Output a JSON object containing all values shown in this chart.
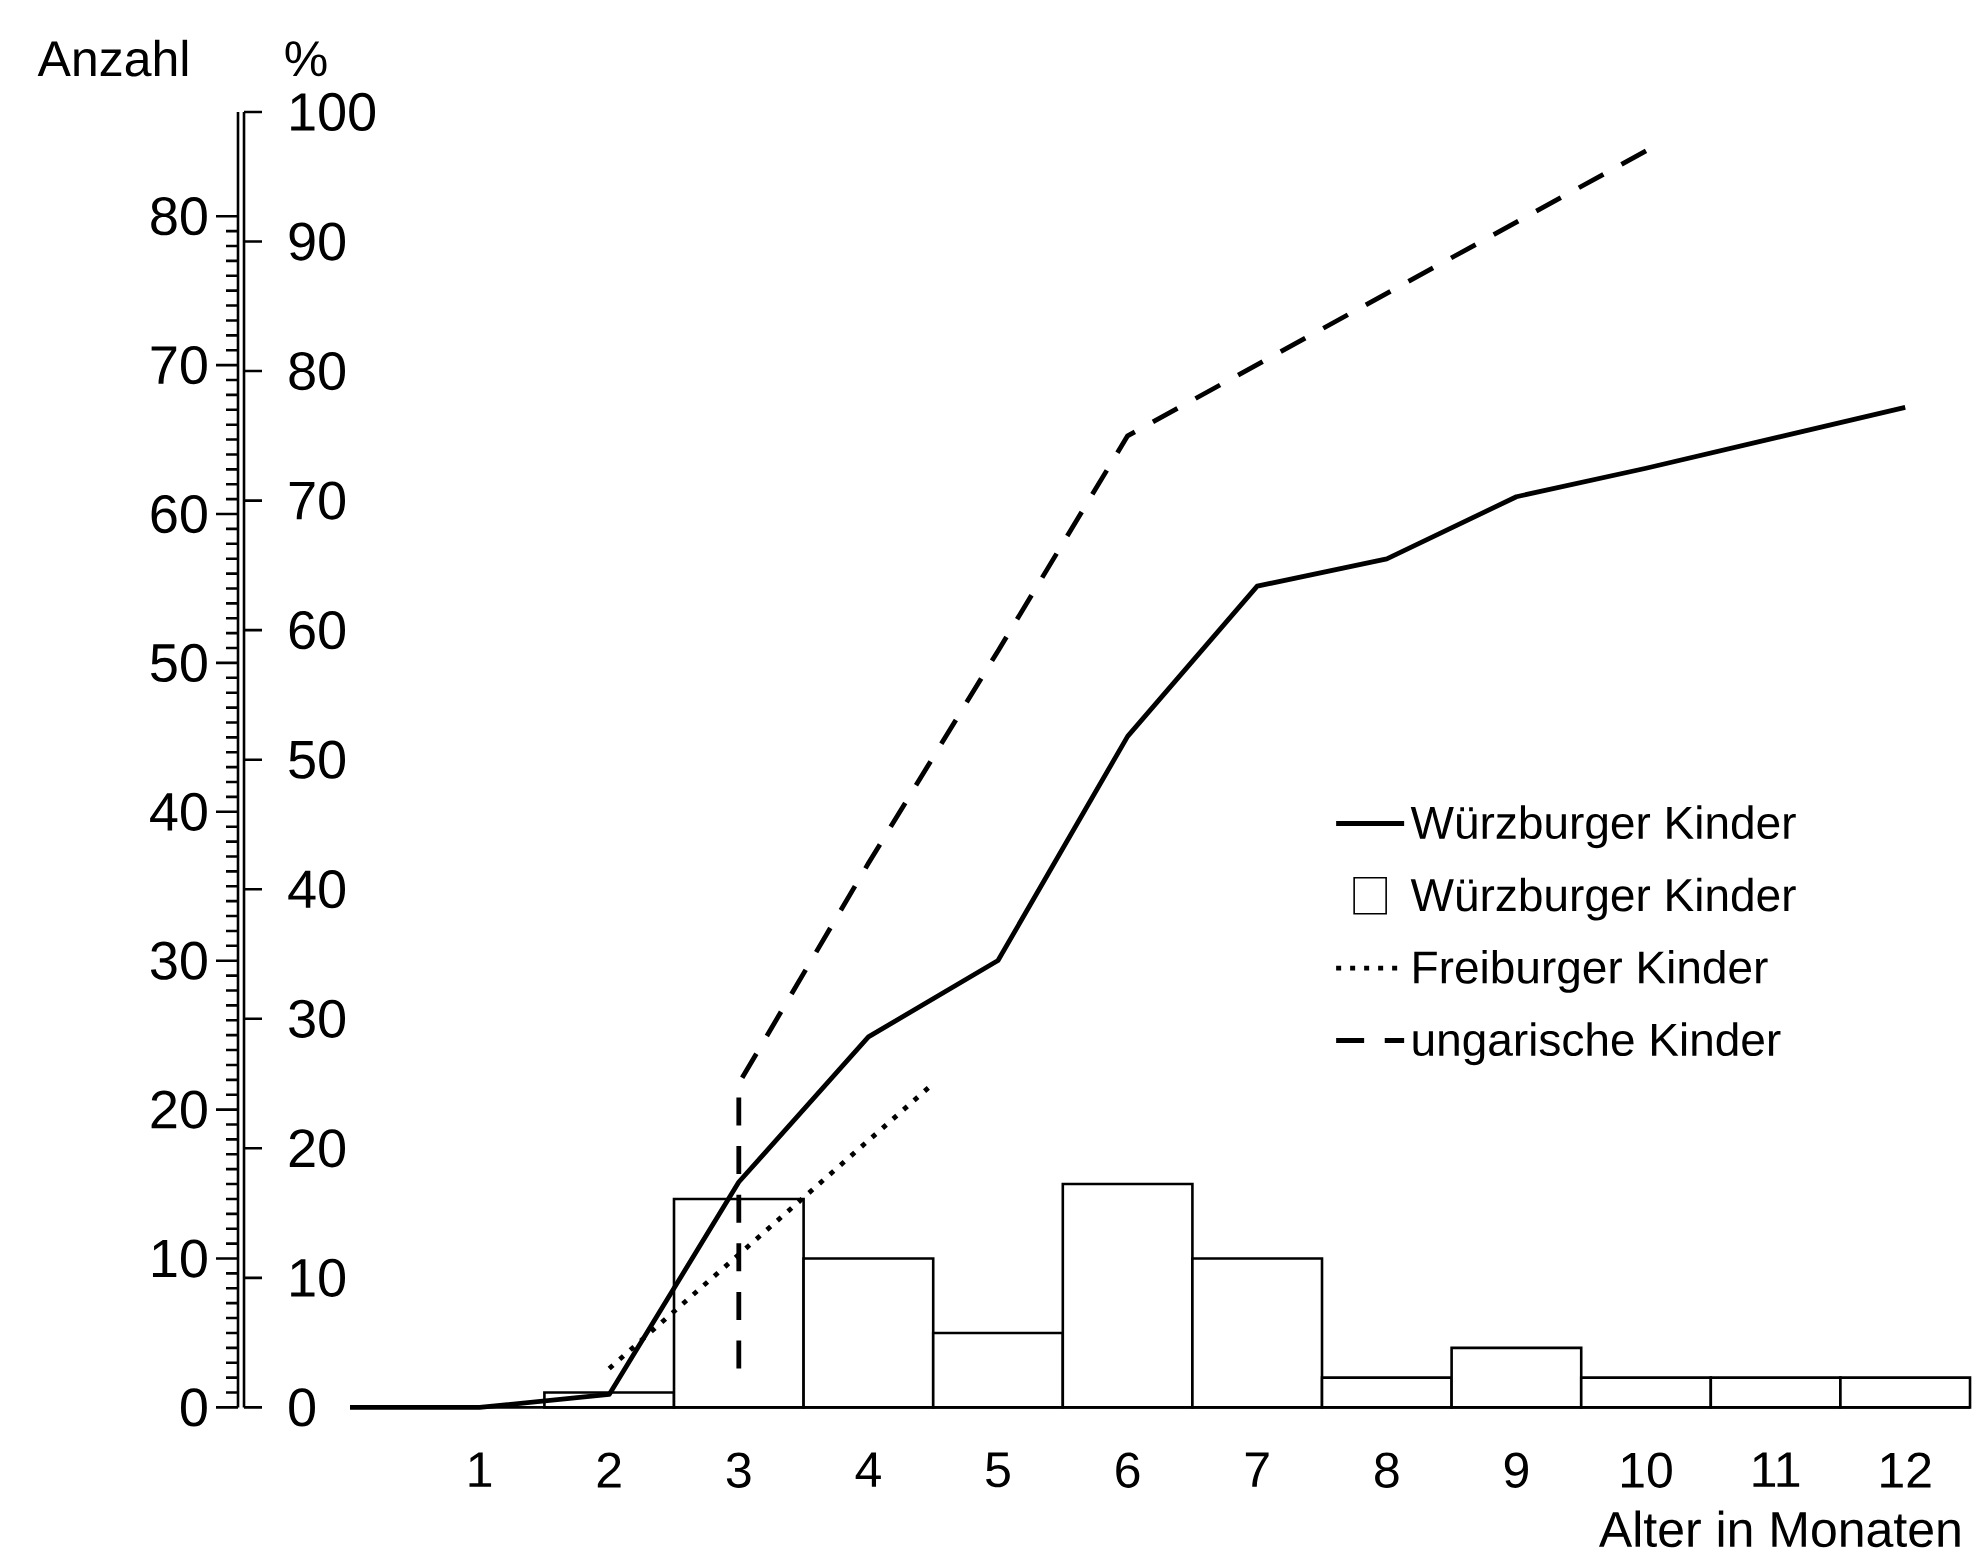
{
  "chart_data": {
    "type": "line",
    "xlabel": "Alter in Monaten",
    "ylabel": "Anzahl",
    "y2label": "%",
    "xlim": [
      0,
      12.5
    ],
    "xticks": [
      1,
      2,
      3,
      4,
      5,
      6,
      7,
      8,
      9,
      10,
      11,
      12
    ],
    "ylim": [
      0,
      87
    ],
    "yticks": [
      0,
      10,
      20,
      30,
      40,
      50,
      60,
      70,
      80
    ],
    "y2lim": [
      0,
      100
    ],
    "y2ticks": [
      0,
      10,
      20,
      30,
      40,
      50,
      60,
      70,
      80,
      90,
      100
    ],
    "legend": "right",
    "series": [
      {
        "name": "Würzburger Kinder",
        "axis": "y2",
        "line_style": "solid",
        "color": "#000000",
        "x": [
          0,
          1,
          2,
          3,
          4,
          5,
          6,
          7,
          8,
          9,
          10,
          12
        ],
        "values": [
          0,
          0,
          1,
          17.4,
          28.6,
          34.5,
          51.8,
          63.4,
          65.5,
          70.3,
          72.5,
          77.2
        ]
      },
      {
        "name": "Würzburger Kinder",
        "type": "bar",
        "axis": "y",
        "color": "#ffffff",
        "x": [
          2,
          3,
          4,
          5,
          6,
          7,
          8,
          9,
          10,
          11,
          12
        ],
        "values": [
          1,
          14,
          10,
          5,
          15,
          10,
          2,
          4,
          2,
          2,
          2
        ]
      },
      {
        "name": "Freiburger Kinder",
        "axis": "y2",
        "line_style": "dotted",
        "color": "#000000",
        "x": [
          2,
          4.5
        ],
        "values": [
          3,
          25
        ]
      },
      {
        "name": "ungarische Kinder",
        "axis": "y2",
        "line_style": "dashed",
        "color": "#000000",
        "x": [
          3,
          3,
          4,
          5,
          6,
          7,
          8,
          9,
          10
        ],
        "values": [
          3,
          25,
          42,
          58.4,
          75,
          80.5,
          86,
          91.5,
          97
        ]
      }
    ]
  }
}
